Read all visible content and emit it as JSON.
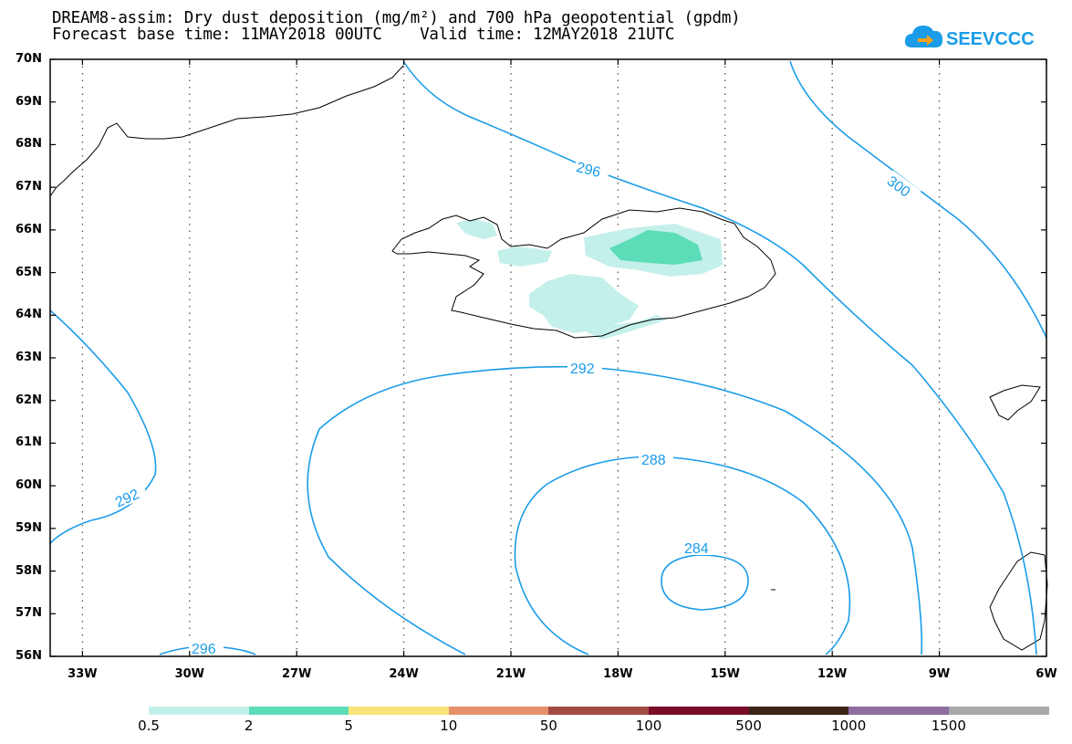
{
  "title": {
    "line1": "DREAM8-assim: Dry dust deposition (mg/m²) and 700 hPa geopotential (gpdm)",
    "line2": "Forecast base time: 11MAY2018 00UTC    Valid time: 12MAY2018 21UTC"
  },
  "logo": {
    "text": "SEEVCCC",
    "icon": "cloud-arrow-icon"
  },
  "axes": {
    "lat_labels": [
      "70N",
      "69N",
      "68N",
      "67N",
      "66N",
      "65N",
      "64N",
      "63N",
      "62N",
      "61N",
      "60N",
      "59N",
      "58N",
      "57N",
      "56N"
    ],
    "lon_labels": [
      "33W",
      "30W",
      "27W",
      "24W",
      "21W",
      "18W",
      "15W",
      "12W",
      "9W",
      "6W"
    ]
  },
  "contours": {
    "color": "#1a9ce8",
    "labels": [
      "296",
      "300",
      "292",
      "292",
      "288",
      "284",
      "296"
    ]
  },
  "legend": {
    "colors": [
      "#c4f0ea",
      "#5ddcb8",
      "#f7e47a",
      "#e8906a",
      "#a24c44",
      "#7a0c2a",
      "#3a2416",
      "#8e6ea0",
      "#a8a8a8"
    ],
    "labels": [
      "0.5",
      "2",
      "5",
      "10",
      "50",
      "100",
      "500",
      "1000",
      "1500"
    ]
  }
}
